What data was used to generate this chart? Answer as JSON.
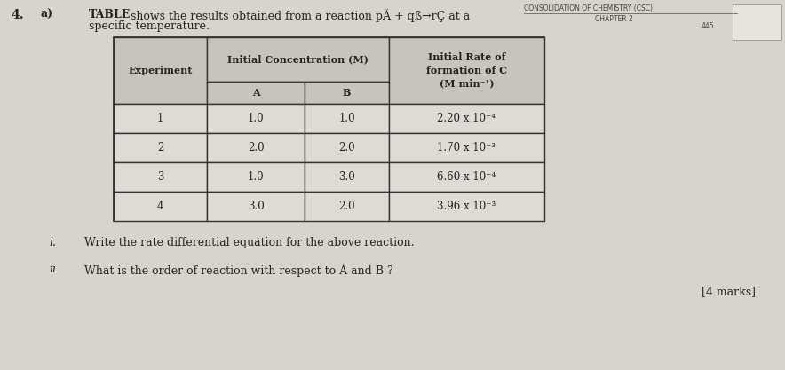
{
  "background_color": "#d8d4cc",
  "question_number": "4.",
  "part_label": "a)",
  "header_text": "CONSOLIDATION OF CHEMISTRY (CSC)",
  "subheader_text": "CHAPTER 2",
  "page_number": "445",
  "main_text_bold": "TABLE",
  "main_text_rest": " shows the results obtained from a reaction pÁ + qß→rÇ at a",
  "main_text_line2": "specific temperature.",
  "rows": [
    [
      "1",
      "1.0",
      "1.0",
      "2.20 x 10⁻⁴"
    ],
    [
      "2",
      "2.0",
      "2.0",
      "1.70 x 10⁻³"
    ],
    [
      "3",
      "1.0",
      "3.0",
      "6.60 x 10⁻⁴"
    ],
    [
      "4",
      "3.0",
      "2.0",
      "3.96 x 10⁻³"
    ]
  ],
  "question_i_label": "i.",
  "question_i_text": "Write the rate differential equation for the above reaction.",
  "question_ii_label": "ii",
  "question_ii_text": "What is the order of reaction with respect to Á and B ?",
  "marks_text": "[4 marks]",
  "font_color": "#222222",
  "table_border_color": "#333333",
  "table_bg_header": "#c8c4bc",
  "table_bg_data": "#dedad4"
}
